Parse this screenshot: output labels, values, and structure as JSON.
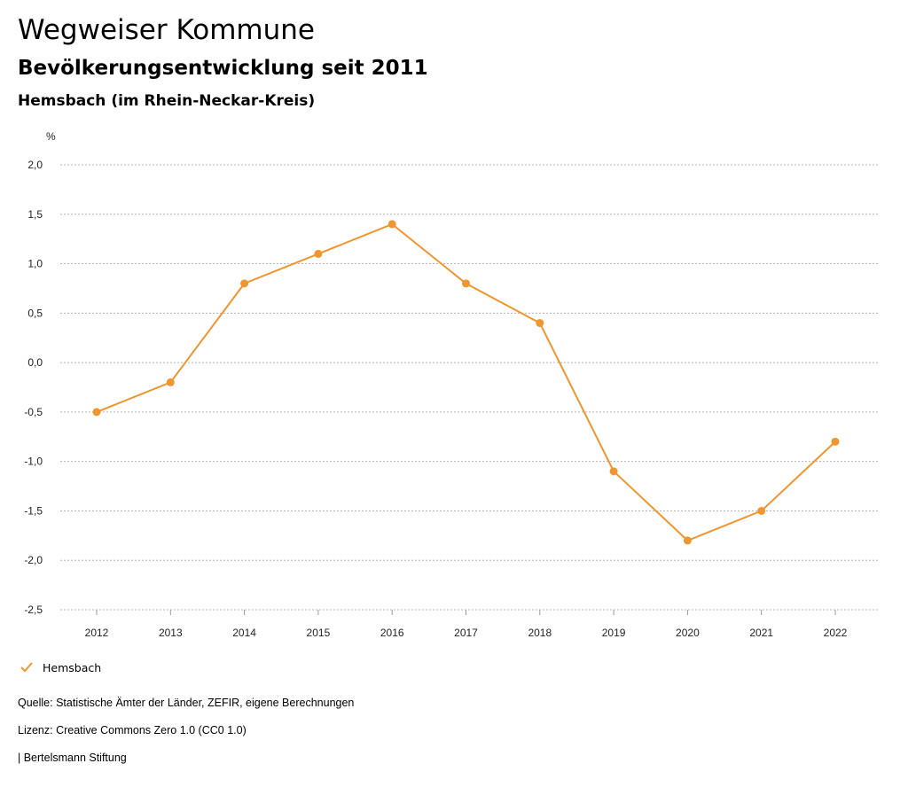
{
  "header": {
    "title": "Wegweiser Kommune",
    "subtitle": "Bevölkerungsentwicklung seit 2011",
    "region": "Hemsbach (im Rhein-Neckar-Kreis)"
  },
  "chart_data": {
    "type": "line",
    "ylabel": "%",
    "ylim": [
      -2.5,
      2.0
    ],
    "yticks": [
      "2,0",
      "1,5",
      "1,0",
      "0,5",
      "0,0",
      "-0,5",
      "-1,0",
      "-1,5",
      "-2,0",
      "-2,5"
    ],
    "categories": [
      "2012",
      "2013",
      "2014",
      "2015",
      "2016",
      "2017",
      "2018",
      "2019",
      "2020",
      "2021",
      "2022"
    ],
    "series": [
      {
        "name": "Hemsbach",
        "color": "#f0962e",
        "values": [
          -0.5,
          -0.2,
          0.8,
          1.1,
          1.4,
          0.8,
          0.4,
          -1.1,
          -1.8,
          -1.5,
          -0.8
        ]
      }
    ],
    "grid": true,
    "legend_position": "bottom-left"
  },
  "legend": {
    "label": "Hemsbach",
    "icon": "check-icon"
  },
  "footer": {
    "source": "Quelle: Statistische Ämter der Länder, ZEFIR, eigene Berechnungen",
    "license": "Lizenz: Creative Commons Zero 1.0 (CC0 1.0)",
    "publisher": "| Bertelsmann Stiftung"
  }
}
